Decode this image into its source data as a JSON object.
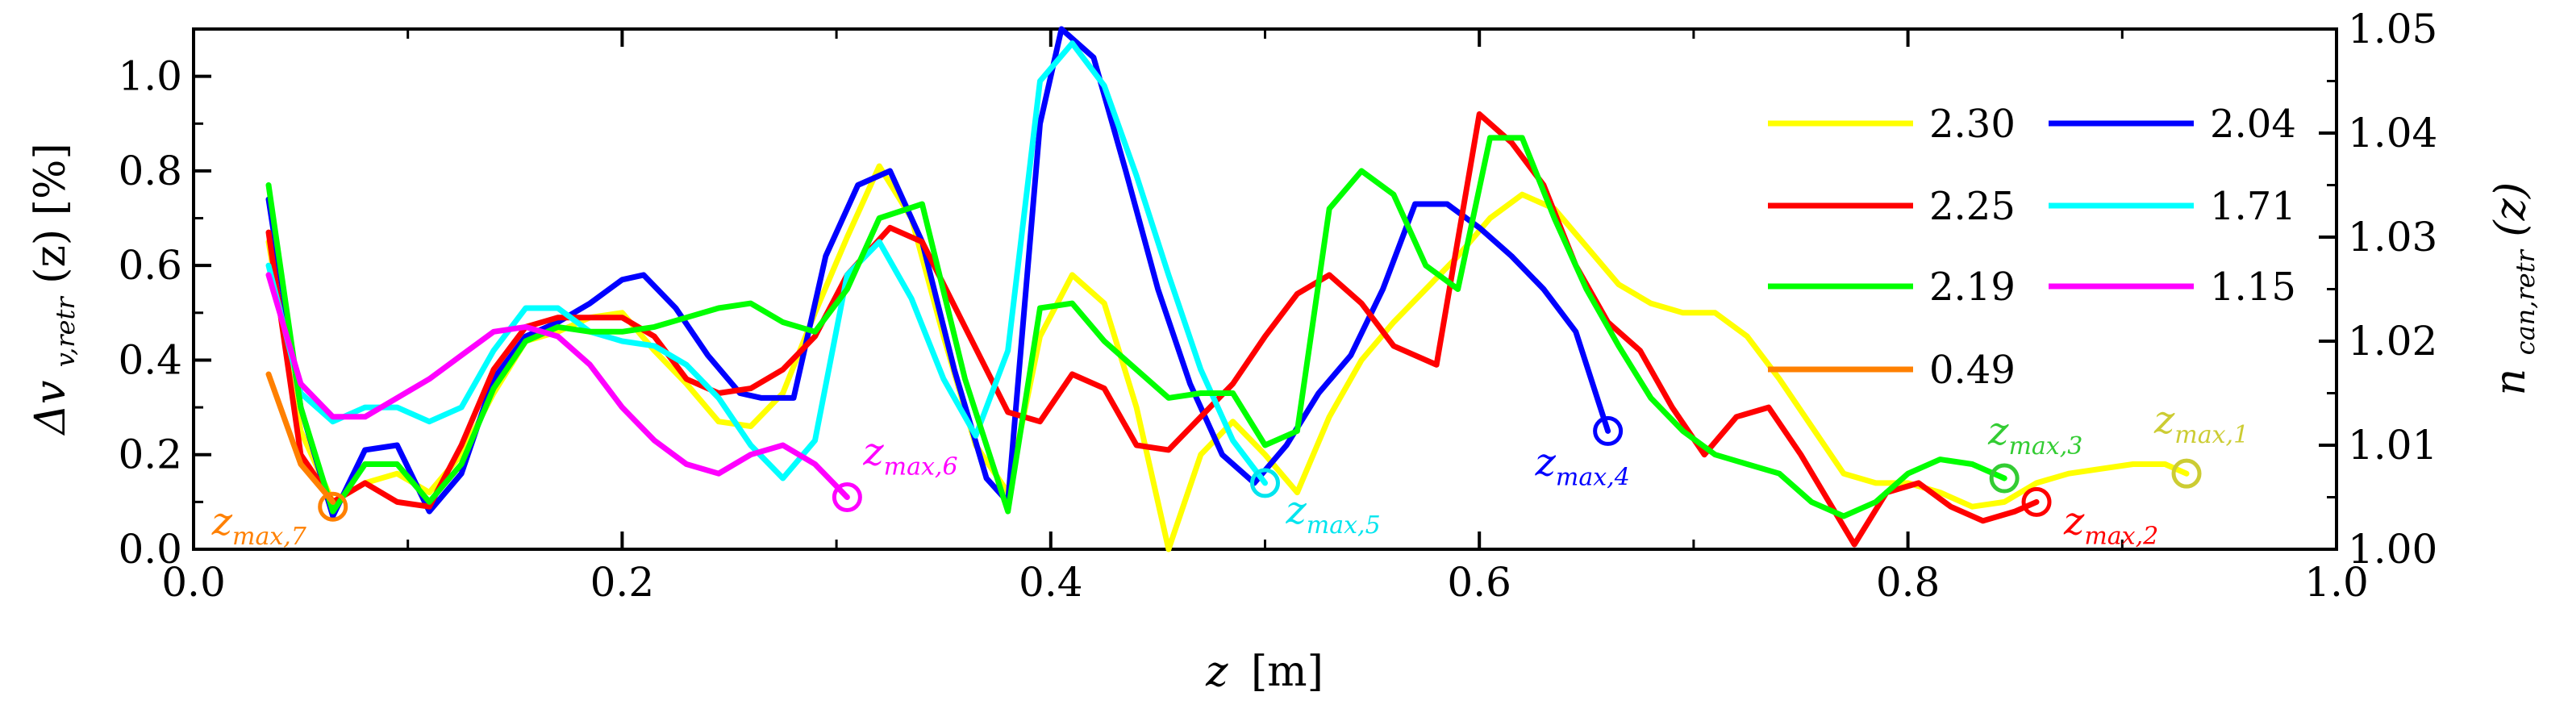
{
  "chart_data": {
    "type": "line",
    "xlabel": {
      "var": "z",
      "unit": "[m]"
    },
    "ylabel_left": {
      "main": "Δv",
      "sub": "v,retr",
      "arg": "(z) [%]"
    },
    "ylabel_right": {
      "main": "n",
      "sub": "can,retr",
      "arg": "(z)"
    },
    "xlim": [
      0.0,
      1.0
    ],
    "ylim_left": [
      0.0,
      1.1
    ],
    "ylim_right": [
      1.0,
      1.05
    ],
    "xticks": [
      "0.0",
      "0.2",
      "0.4",
      "0.6",
      "0.8",
      "1.0"
    ],
    "yticks_left": [
      "0.0",
      "0.2",
      "0.4",
      "0.6",
      "0.8",
      "1.0"
    ],
    "yticks_right": [
      "1.00",
      "1.01",
      "1.02",
      "1.03",
      "1.04",
      "1.05"
    ],
    "legend_position": "top-right",
    "series": [
      {
        "name": "2.30",
        "color": "#ffff00",
        "x": [
          0.035,
          0.05,
          0.065,
          0.08,
          0.095,
          0.11,
          0.125,
          0.14,
          0.155,
          0.17,
          0.185,
          0.2,
          0.215,
          0.23,
          0.245,
          0.26,
          0.275,
          0.29,
          0.305,
          0.32,
          0.335,
          0.35,
          0.365,
          0.38,
          0.395,
          0.41,
          0.425,
          0.44,
          0.455,
          0.47,
          0.485,
          0.5,
          0.515,
          0.53,
          0.545,
          0.56,
          0.575,
          0.59,
          0.605,
          0.62,
          0.635,
          0.65,
          0.665,
          0.68,
          0.695,
          0.71,
          0.725,
          0.74,
          0.755,
          0.77,
          0.785,
          0.8,
          0.815,
          0.83,
          0.845,
          0.86,
          0.875,
          0.89,
          0.905,
          0.92,
          0.93
        ],
        "y": [
          0.65,
          0.25,
          0.1,
          0.14,
          0.16,
          0.12,
          0.2,
          0.33,
          0.44,
          0.46,
          0.49,
          0.5,
          0.42,
          0.35,
          0.27,
          0.26,
          0.33,
          0.5,
          0.66,
          0.81,
          0.7,
          0.45,
          0.22,
          0.12,
          0.45,
          0.58,
          0.52,
          0.3,
          0.0,
          0.2,
          0.27,
          0.2,
          0.12,
          0.28,
          0.4,
          0.48,
          0.55,
          0.62,
          0.7,
          0.75,
          0.72,
          0.64,
          0.56,
          0.52,
          0.5,
          0.5,
          0.45,
          0.36,
          0.26,
          0.16,
          0.14,
          0.14,
          0.12,
          0.09,
          0.1,
          0.14,
          0.16,
          0.17,
          0.18,
          0.18,
          0.16
        ]
      },
      {
        "name": "2.04",
        "color": "#0000ff",
        "x": [
          0.035,
          0.05,
          0.065,
          0.08,
          0.095,
          0.11,
          0.125,
          0.14,
          0.155,
          0.17,
          0.185,
          0.2,
          0.21,
          0.225,
          0.24,
          0.255,
          0.265,
          0.28,
          0.295,
          0.31,
          0.325,
          0.34,
          0.355,
          0.37,
          0.38,
          0.395,
          0.405,
          0.42,
          0.435,
          0.45,
          0.465,
          0.48,
          0.495,
          0.51,
          0.525,
          0.54,
          0.555,
          0.57,
          0.585,
          0.6,
          0.615,
          0.63,
          0.645,
          0.66
        ],
        "y": [
          0.74,
          0.3,
          0.07,
          0.21,
          0.22,
          0.08,
          0.16,
          0.36,
          0.45,
          0.48,
          0.52,
          0.57,
          0.58,
          0.51,
          0.41,
          0.33,
          0.32,
          0.32,
          0.62,
          0.77,
          0.8,
          0.65,
          0.38,
          0.15,
          0.1,
          0.9,
          1.1,
          1.04,
          0.8,
          0.55,
          0.35,
          0.2,
          0.14,
          0.22,
          0.33,
          0.41,
          0.55,
          0.73,
          0.73,
          0.68,
          0.62,
          0.55,
          0.46,
          0.25
        ]
      },
      {
        "name": "2.25",
        "color": "#ff0000",
        "x": [
          0.035,
          0.05,
          0.065,
          0.08,
          0.095,
          0.11,
          0.125,
          0.14,
          0.155,
          0.17,
          0.185,
          0.2,
          0.215,
          0.23,
          0.245,
          0.26,
          0.275,
          0.29,
          0.305,
          0.325,
          0.34,
          0.36,
          0.38,
          0.395,
          0.41,
          0.425,
          0.44,
          0.455,
          0.47,
          0.485,
          0.5,
          0.515,
          0.53,
          0.545,
          0.56,
          0.58,
          0.6,
          0.615,
          0.63,
          0.645,
          0.66,
          0.675,
          0.69,
          0.705,
          0.72,
          0.735,
          0.75,
          0.775,
          0.79,
          0.805,
          0.82,
          0.835,
          0.85,
          0.86
        ],
        "y": [
          0.67,
          0.2,
          0.1,
          0.14,
          0.1,
          0.09,
          0.22,
          0.38,
          0.47,
          0.49,
          0.49,
          0.49,
          0.45,
          0.36,
          0.33,
          0.34,
          0.38,
          0.45,
          0.58,
          0.68,
          0.65,
          0.47,
          0.29,
          0.27,
          0.37,
          0.34,
          0.22,
          0.21,
          0.28,
          0.35,
          0.45,
          0.54,
          0.58,
          0.52,
          0.43,
          0.39,
          0.92,
          0.86,
          0.77,
          0.6,
          0.48,
          0.42,
          0.3,
          0.2,
          0.28,
          0.3,
          0.2,
          0.01,
          0.12,
          0.14,
          0.09,
          0.06,
          0.08,
          0.1
        ]
      },
      {
        "name": "1.71",
        "color": "#00ffff",
        "x": [
          0.035,
          0.05,
          0.065,
          0.08,
          0.095,
          0.11,
          0.125,
          0.14,
          0.155,
          0.17,
          0.185,
          0.2,
          0.215,
          0.23,
          0.245,
          0.26,
          0.275,
          0.29,
          0.305,
          0.32,
          0.335,
          0.35,
          0.365,
          0.38,
          0.395,
          0.41,
          0.425,
          0.44,
          0.455,
          0.47,
          0.485,
          0.5
        ],
        "y": [
          0.6,
          0.33,
          0.27,
          0.3,
          0.3,
          0.27,
          0.3,
          0.42,
          0.51,
          0.51,
          0.46,
          0.44,
          0.43,
          0.39,
          0.32,
          0.22,
          0.15,
          0.23,
          0.58,
          0.65,
          0.53,
          0.36,
          0.24,
          0.42,
          0.99,
          1.07,
          0.98,
          0.79,
          0.58,
          0.38,
          0.23,
          0.14
        ]
      },
      {
        "name": "2.19",
        "color": "#00ff00",
        "x": [
          0.035,
          0.05,
          0.065,
          0.08,
          0.095,
          0.11,
          0.125,
          0.14,
          0.155,
          0.17,
          0.185,
          0.2,
          0.215,
          0.23,
          0.245,
          0.26,
          0.275,
          0.29,
          0.305,
          0.32,
          0.34,
          0.36,
          0.38,
          0.395,
          0.41,
          0.425,
          0.44,
          0.455,
          0.47,
          0.485,
          0.5,
          0.515,
          0.53,
          0.545,
          0.56,
          0.575,
          0.59,
          0.605,
          0.62,
          0.635,
          0.65,
          0.665,
          0.68,
          0.695,
          0.71,
          0.725,
          0.74,
          0.755,
          0.77,
          0.785,
          0.8,
          0.815,
          0.83,
          0.845
        ],
        "y": [
          0.77,
          0.3,
          0.08,
          0.18,
          0.18,
          0.1,
          0.18,
          0.34,
          0.44,
          0.47,
          0.46,
          0.46,
          0.47,
          0.49,
          0.51,
          0.52,
          0.48,
          0.46,
          0.55,
          0.7,
          0.73,
          0.36,
          0.08,
          0.51,
          0.52,
          0.44,
          0.38,
          0.32,
          0.33,
          0.33,
          0.22,
          0.25,
          0.72,
          0.8,
          0.75,
          0.6,
          0.55,
          0.87,
          0.87,
          0.7,
          0.55,
          0.43,
          0.32,
          0.25,
          0.2,
          0.18,
          0.16,
          0.1,
          0.07,
          0.1,
          0.16,
          0.19,
          0.18,
          0.15
        ]
      },
      {
        "name": "1.15",
        "color": "#ff00ff",
        "x": [
          0.035,
          0.05,
          0.065,
          0.08,
          0.095,
          0.11,
          0.125,
          0.14,
          0.155,
          0.17,
          0.185,
          0.2,
          0.215,
          0.23,
          0.245,
          0.26,
          0.275,
          0.29,
          0.305
        ],
        "y": [
          0.58,
          0.35,
          0.28,
          0.28,
          0.32,
          0.36,
          0.41,
          0.46,
          0.47,
          0.45,
          0.39,
          0.3,
          0.23,
          0.18,
          0.16,
          0.2,
          0.22,
          0.18,
          0.11
        ]
      },
      {
        "name": "0.49",
        "color": "#ff8000",
        "x": [
          0.035,
          0.05,
          0.065
        ],
        "y": [
          0.37,
          0.18,
          0.1
        ]
      }
    ],
    "annotations": [
      {
        "main": "z",
        "sub": "max,1",
        "x": 0.93,
        "y": 0.16,
        "color": "#cccc33"
      },
      {
        "main": "z",
        "sub": "max,2",
        "x": 0.86,
        "y": 0.1,
        "color": "#ff0000"
      },
      {
        "main": "z",
        "sub": "max,3",
        "x": 0.845,
        "y": 0.15,
        "color": "#33cc33"
      },
      {
        "main": "z",
        "sub": "max,4",
        "x": 0.66,
        "y": 0.25,
        "color": "#0000ff"
      },
      {
        "main": "z",
        "sub": "max,5",
        "x": 0.5,
        "y": 0.14,
        "color": "#00e5ee"
      },
      {
        "main": "z",
        "sub": "max,6",
        "x": 0.305,
        "y": 0.11,
        "color": "#ff00ff"
      },
      {
        "main": "z",
        "sub": "max,7",
        "x": 0.065,
        "y": 0.09,
        "color": "#ff8000"
      }
    ]
  }
}
